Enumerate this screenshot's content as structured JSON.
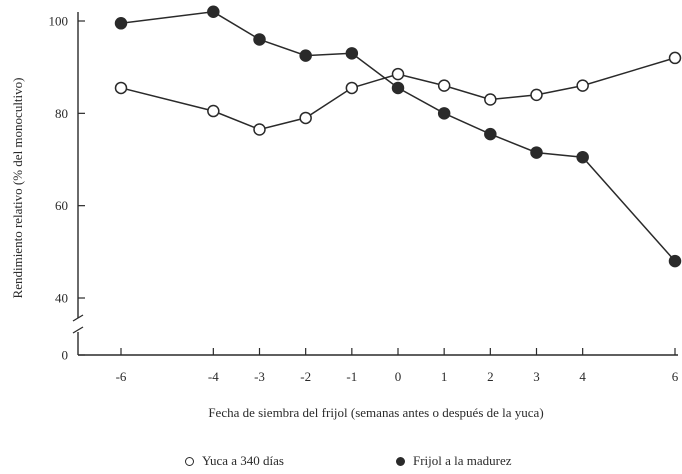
{
  "chart_data": {
    "type": "line",
    "title": "",
    "xlabel": "Fecha de siembra del frijol (semanas antes o después de la yuca)",
    "ylabel": "Rendimiento relativo (% del monocultivo)",
    "x_ticks": [
      -6,
      -4,
      -3,
      -2,
      -1,
      0,
      1,
      2,
      3,
      4,
      6
    ],
    "x_tick_labels": [
      "-6",
      "-4",
      "-3",
      "-2",
      "-1",
      "0",
      "1",
      "2",
      "3",
      "4",
      "6"
    ],
    "y_ticks": [
      0,
      40,
      60,
      80,
      100
    ],
    "y_tick_labels": [
      "0",
      "40",
      "60",
      "80",
      "100"
    ],
    "xlim": [
      -6.5,
      6.2
    ],
    "ylim": [
      0,
      103
    ],
    "y_axis_break": [
      0,
      40
    ],
    "grid": false,
    "legend_position": "bottom-center",
    "series": [
      {
        "name": "Yuca a 340 días",
        "marker": "open-circle",
        "color": "#2a2a2a",
        "x": [
          -6,
          -4,
          -3,
          -2,
          -1,
          0,
          1,
          2,
          3,
          4,
          6
        ],
        "values": [
          85.5,
          80.5,
          76.5,
          79,
          85.5,
          88.5,
          86,
          83,
          84,
          86,
          92
        ]
      },
      {
        "name": "Frijol a la madurez",
        "marker": "filled-circle",
        "color": "#2a2a2a",
        "x": [
          -6,
          -4,
          -3,
          -2,
          -1,
          0,
          1,
          2,
          3,
          4,
          6
        ],
        "values": [
          99.5,
          102,
          96,
          92.5,
          93,
          85.5,
          80,
          75.5,
          71.5,
          70.5,
          48
        ]
      }
    ]
  }
}
